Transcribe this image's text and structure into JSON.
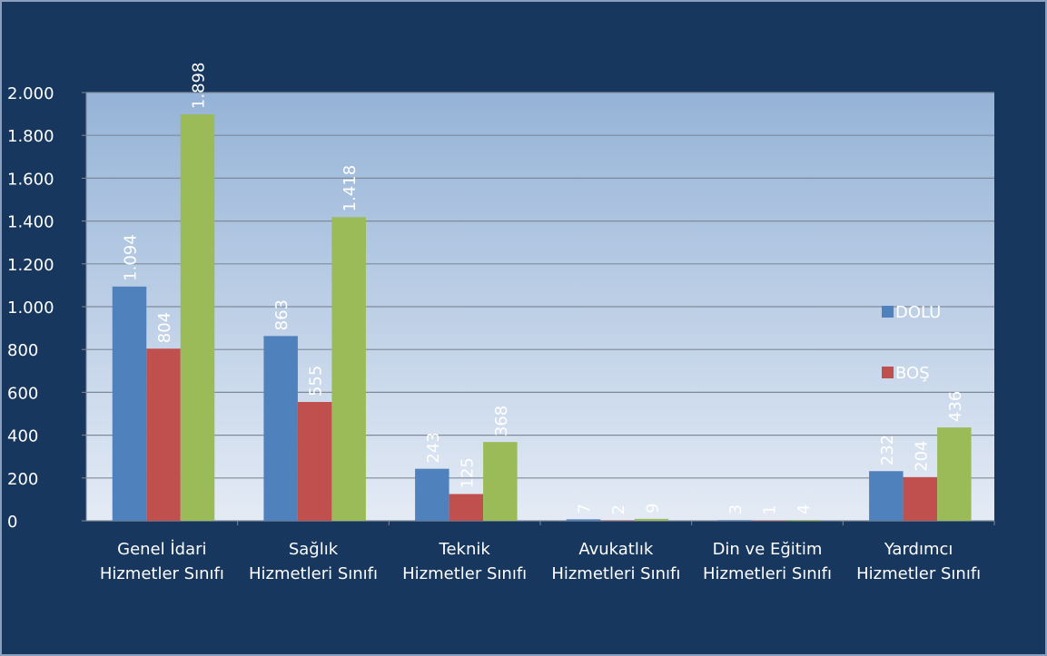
{
  "chart_data": {
    "type": "bar",
    "categories": [
      "Genel İdari Hizmetler Sınıfı",
      "Sağlık Hizmetleri Sınıfı",
      "Teknik Hizmetler Sınıfı",
      "Avukatlık Hizmetleri Sınıfı",
      "Din ve Eğitim Hizmetleri Sınıfı",
      "Yardımcı Hizmetler Sınıfı"
    ],
    "series": [
      {
        "name": "DOLU",
        "color": "#4f81bd",
        "values": [
          1094,
          863,
          243,
          7,
          3,
          232
        ],
        "value_labels": [
          "1.094",
          "863",
          "243",
          "7",
          "3",
          "232"
        ]
      },
      {
        "name": "BOŞ",
        "color": "#c0504d",
        "values": [
          804,
          555,
          125,
          2,
          1,
          204
        ],
        "value_labels": [
          "804",
          "555",
          "125",
          "2",
          "1",
          "204"
        ]
      },
      {
        "color": "#9bbb59",
        "values": [
          1898,
          1418,
          368,
          9,
          4,
          436
        ],
        "value_labels": [
          "1.898",
          "1.418",
          "368",
          "9",
          "4",
          "436"
        ]
      }
    ],
    "ylim": [
      0,
      2000
    ],
    "yticks": [
      0,
      200,
      400,
      600,
      800,
      {
        "value": 1000,
        "label": "1.000"
      },
      {
        "value": 1200,
        "label": "1.200"
      },
      {
        "value": 1400,
        "label": "1.400"
      },
      {
        "value": 1600,
        "label": "1.600"
      },
      {
        "value": 1800,
        "label": "1.800"
      },
      {
        "value": 2000,
        "label": "2.000"
      }
    ],
    "grid": true,
    "legend": "right"
  }
}
